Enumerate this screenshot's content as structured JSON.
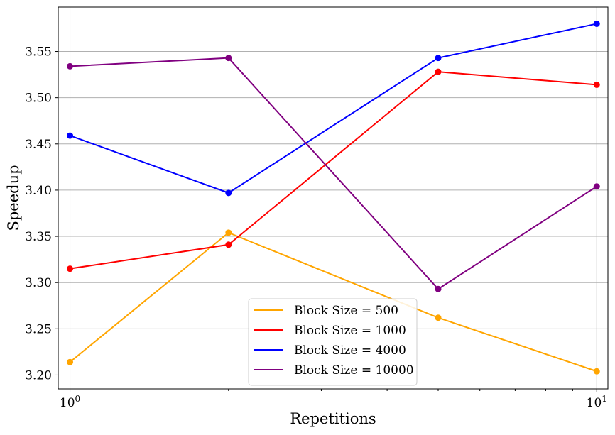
{
  "chart_data": {
    "type": "line",
    "xlabel": "Repetitions",
    "ylabel": "Speedup",
    "xscale": "log",
    "grid": true,
    "legend_position": "bottom-center",
    "x": [
      1,
      2,
      5,
      10
    ],
    "xlim": [
      0.95,
      10.5
    ],
    "ylim": [
      3.185,
      3.598
    ],
    "yticks": [
      3.2,
      3.25,
      3.3,
      3.35,
      3.4,
      3.45,
      3.5,
      3.55
    ],
    "ytick_labels": [
      "3.20",
      "3.25",
      "3.30",
      "3.35",
      "3.40",
      "3.45",
      "3.50",
      "3.55"
    ],
    "xticks": [
      {
        "value": 1,
        "base": "10",
        "exp": "0"
      },
      {
        "value": 10,
        "base": "10",
        "exp": "1"
      }
    ],
    "series": [
      {
        "name": "Block Size = 500",
        "color": "#FFA500",
        "values": [
          3.214,
          3.354,
          3.262,
          3.204
        ]
      },
      {
        "name": "Block Size = 1000",
        "color": "#FF0000",
        "values": [
          3.315,
          3.341,
          3.528,
          3.514
        ]
      },
      {
        "name": "Block Size = 4000",
        "color": "#0000FF",
        "values": [
          3.459,
          3.397,
          3.543,
          3.58
        ]
      },
      {
        "name": "Block Size = 10000",
        "color": "#800080",
        "values": [
          3.534,
          3.543,
          3.293,
          3.404
        ]
      }
    ]
  }
}
